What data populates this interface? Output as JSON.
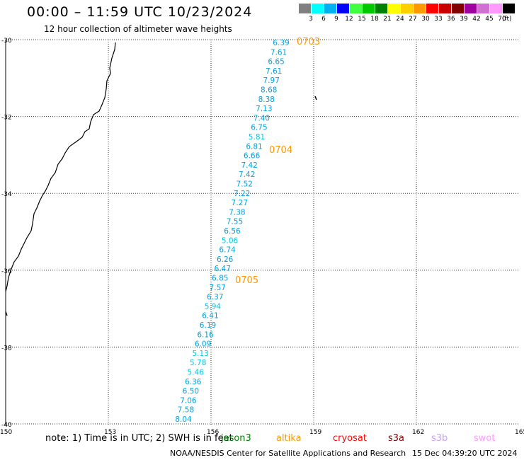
{
  "header": {
    "title": "00:00 – 11:59 UTC 10/23/2024",
    "subtitle": "12 hour collection of altimeter wave heights"
  },
  "legend": {
    "unit": "(ft)",
    "bins": [
      {
        "label": "3",
        "color": "#808080"
      },
      {
        "label": "6",
        "color": "#00ffff"
      },
      {
        "label": "9",
        "color": "#00b0f0"
      },
      {
        "label": "12",
        "color": "#0000ff"
      },
      {
        "label": "15",
        "color": "#40ff40"
      },
      {
        "label": "18",
        "color": "#00c800"
      },
      {
        "label": "21",
        "color": "#008000"
      },
      {
        "label": "24",
        "color": "#ffff00"
      },
      {
        "label": "27",
        "color": "#ffd000"
      },
      {
        "label": "30",
        "color": "#ff9900"
      },
      {
        "label": "33",
        "color": "#ff0000"
      },
      {
        "label": "36",
        "color": "#c80000"
      },
      {
        "label": "39",
        "color": "#800000"
      },
      {
        "label": "42",
        "color": "#a000a0"
      },
      {
        "label": "45",
        "color": "#d070d0"
      },
      {
        "label": "70",
        "color": "#ff99ff"
      },
      {
        "label": "",
        "color": "#000000"
      }
    ]
  },
  "map": {
    "lat_ticks": [
      "-30",
      "-32",
      "-34",
      "-36",
      "-38",
      "-40"
    ],
    "lon_ticks": [
      "150",
      "153",
      "156",
      "159",
      "162",
      "165"
    ],
    "grid_color": "#333333",
    "coast_color": "#000000",
    "value_color": "#00a0e0",
    "value_color_light": "#00c8e0",
    "time_label_color": "#ff9900"
  },
  "swh_values": [
    "6.39",
    "7.61",
    "6.65",
    "7.61",
    "7.97",
    "8.68",
    "8.38",
    "7.13",
    "7.40",
    "6.75",
    "5.81",
    "6.81",
    "6.66",
    "7.42",
    "7.42",
    "7.52",
    "7.22",
    "7.27",
    "7.38",
    "7.55",
    "6.56",
    "5.06",
    "6.74",
    "6.26",
    "6.47",
    "6.85",
    "7.57",
    "6.37",
    "5.94",
    "6.41",
    "6.19",
    "6.16",
    "6.09",
    "5.13",
    "5.78",
    "5.46",
    "6.36",
    "6.50",
    "7.06",
    "7.58",
    "8.04"
  ],
  "time_labels": [
    "0703",
    "0704",
    "0705"
  ],
  "note": {
    "text": "note: 1) Time is in UTC; 2) SWH is in feet",
    "satellites": [
      {
        "name": "jason3",
        "color": "#008000"
      },
      {
        "name": "altika",
        "color": "#ff9900"
      },
      {
        "name": "cryosat",
        "color": "#ff0000"
      },
      {
        "name": "s3a",
        "color": "#800000"
      },
      {
        "name": "s3b",
        "color": "#c8a0ff"
      },
      {
        "name": "swot",
        "color": "#ff99ff"
      }
    ]
  },
  "footer": {
    "left": "NOAA/NESDIS Center for Satellite Applications and Research",
    "right": "15 Dec 04:39:20 UTC 2024"
  }
}
